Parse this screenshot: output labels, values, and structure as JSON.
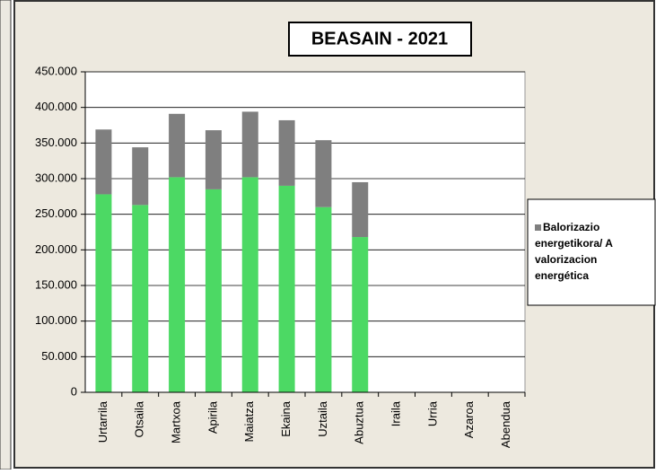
{
  "chart_data": {
    "type": "bar",
    "stacked": true,
    "title": "BEASAIN - 2021",
    "categories": [
      "Urtarrila",
      "Otsaila",
      "Martxoa",
      "Apirila",
      "Maiatza",
      "Ekaina",
      "Uztaila",
      "Abuztua",
      "Iraila",
      "Urria",
      "Azaroa",
      "Abendua"
    ],
    "series": [
      {
        "color": "#4cd964",
        "values": [
          278000,
          263000,
          302000,
          285000,
          302000,
          290000,
          260000,
          218000,
          null,
          null,
          null,
          null
        ]
      },
      {
        "name": "Balorizazio energetikora/ A valorizacion energética",
        "color": "#7f7f7f",
        "values": [
          91000,
          81000,
          89000,
          83000,
          92000,
          92000,
          94000,
          77000,
          null,
          null,
          null,
          null
        ]
      }
    ],
    "ylim": [
      0,
      450000
    ],
    "yticks": [
      0,
      {
        "value": 50000,
        "label": "50.000"
      },
      {
        "value": 100000,
        "label": "100.000"
      },
      {
        "value": 150000,
        "label": "150.000"
      },
      {
        "value": 200000,
        "label": "200.000"
      },
      {
        "value": 250000,
        "label": "250.000"
      },
      {
        "value": 300000,
        "label": "300.000"
      },
      {
        "value": 350000,
        "label": "350.000"
      },
      {
        "value": 400000,
        "label": "400.000"
      },
      {
        "value": 450000,
        "label": "450.000"
      }
    ],
    "grid": true,
    "legend": "right"
  }
}
